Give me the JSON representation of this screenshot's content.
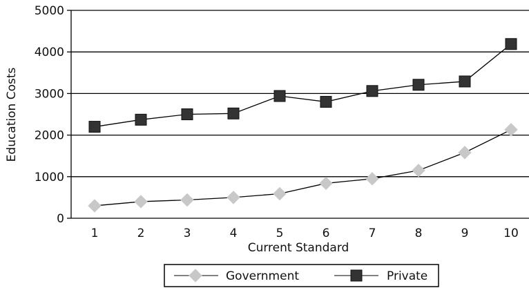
{
  "chart_data": {
    "type": "line",
    "xlabel": "Current Standard",
    "ylabel": "Education Costs",
    "x": [
      1,
      2,
      3,
      4,
      5,
      6,
      7,
      8,
      9,
      10
    ],
    "x_tick_labels": [
      "1",
      "2",
      "3",
      "4",
      "5",
      "6",
      "7",
      "8",
      "9",
      "10"
    ],
    "ylim": [
      0,
      5000
    ],
    "y_ticks": [
      0,
      1000,
      2000,
      3000,
      4000,
      5000
    ],
    "y_tick_labels": [
      "0",
      "1000",
      "2000",
      "3000",
      "4000",
      "5000"
    ],
    "grid": "horizontal",
    "legend_position": "bottom",
    "series": [
      {
        "name": "Government",
        "marker": "diamond",
        "color": "#c8c8c8",
        "values": [
          300,
          400,
          440,
          500,
          590,
          840,
          950,
          1150,
          1580,
          2130
        ]
      },
      {
        "name": "Private",
        "marker": "square",
        "color": "#333333",
        "values": [
          2200,
          2370,
          2500,
          2520,
          2940,
          2800,
          3060,
          3210,
          3290,
          4190
        ]
      }
    ]
  }
}
